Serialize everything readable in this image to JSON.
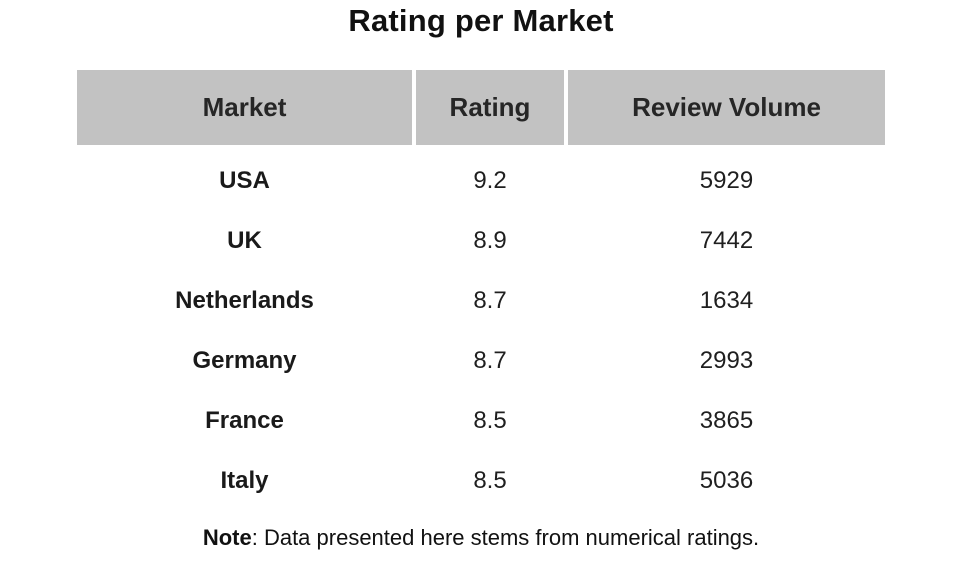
{
  "title": "Rating per Market",
  "colors": {
    "header_bg": "#c2c2c2",
    "text_color": "#1f1f1f",
    "title_color": "#111111"
  },
  "table": {
    "headers": [
      "Market",
      "Rating",
      "Review Volume"
    ],
    "rows": [
      {
        "market": "USA",
        "rating": "9.2",
        "volume": "5929"
      },
      {
        "market": "UK",
        "rating": "8.9",
        "volume": "7442"
      },
      {
        "market": "Netherlands",
        "rating": "8.7",
        "volume": "1634"
      },
      {
        "market": "Germany",
        "rating": "8.7",
        "volume": "2993"
      },
      {
        "market": "France",
        "rating": "8.5",
        "volume": "3865"
      },
      {
        "market": "Italy",
        "rating": "8.5",
        "volume": "5036"
      }
    ]
  },
  "note": {
    "label": "Note",
    "text": ": Data presented here stems from  numerical ratings."
  },
  "chart_data": {
    "type": "table",
    "title": "Rating per Market",
    "columns": [
      "Market",
      "Rating",
      "Review Volume"
    ],
    "rows": [
      [
        "USA",
        9.2,
        5929
      ],
      [
        "UK",
        8.9,
        7442
      ],
      [
        "Netherlands",
        8.7,
        1634
      ],
      [
        "Germany",
        8.7,
        2993
      ],
      [
        "France",
        8.5,
        3865
      ],
      [
        "Italy",
        8.5,
        5036
      ]
    ],
    "note": "Note: Data presented here stems from numerical ratings.",
    "layout": {
      "header_background": "#c2c2c2",
      "body_background": "#ffffff",
      "market_column_bold": true,
      "alignment": "center"
    }
  }
}
